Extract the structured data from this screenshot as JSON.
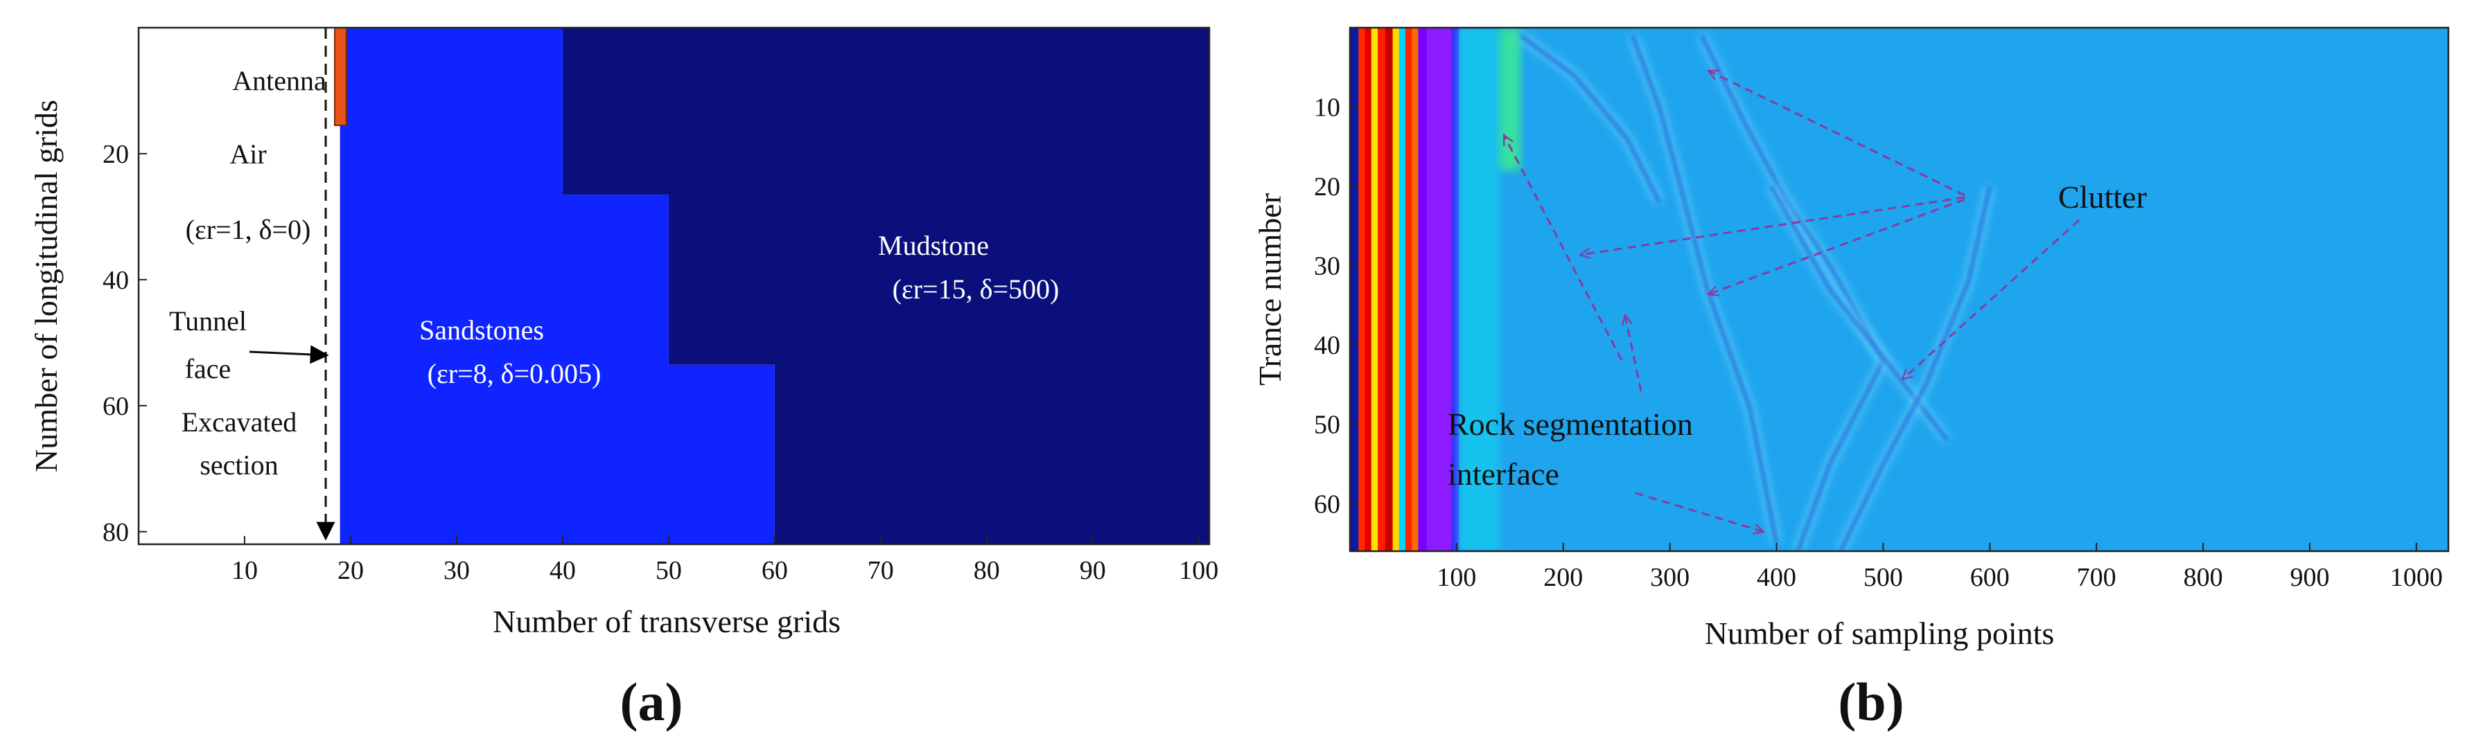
{
  "chart_data": [
    {
      "panel": "(a)",
      "type": "heatmap",
      "xlabel": "Number of transverse grids",
      "ylabel": "Number of longitudinal grids",
      "xlim": [
        0,
        101
      ],
      "ylim": [
        82,
        0
      ],
      "xticks": [
        10,
        20,
        30,
        40,
        50,
        60,
        70,
        80,
        90,
        100
      ],
      "yticks": [
        20,
        40,
        60,
        80
      ],
      "regions": [
        {
          "name": "Air",
          "color": "#ffffff",
          "polygon": [
            [
              0,
              0
            ],
            [
              19,
              0
            ],
            [
              19,
              82
            ],
            [
              0,
              82
            ]
          ]
        },
        {
          "name": "Sandstones",
          "color": "#0f24ff",
          "polygon": [
            [
              19,
              0
            ],
            [
              40,
              0
            ],
            [
              40,
              26.5
            ],
            [
              50,
              26.5
            ],
            [
              50,
              53.5
            ],
            [
              60,
              53.5
            ],
            [
              60,
              82
            ],
            [
              19,
              82
            ]
          ]
        },
        {
          "name": "Mudstone",
          "color": "#0a0f7c",
          "polygon": [
            [
              40,
              0
            ],
            [
              101,
              0
            ],
            [
              101,
              82
            ],
            [
              60,
              82
            ],
            [
              60,
              53.5
            ],
            [
              50,
              53.5
            ],
            [
              50,
              26.5
            ],
            [
              40,
              26.5
            ]
          ]
        },
        {
          "name": "Antenna",
          "color": "#e8531c",
          "polygon": [
            [
              18.5,
              0
            ],
            [
              19.6,
              0
            ],
            [
              19.6,
              15.5
            ],
            [
              18.5,
              15.5
            ]
          ]
        }
      ],
      "annotations": {
        "antenna": "Antenna",
        "air": "Air",
        "air_params": "(εr=1, δ=0)",
        "tunnel_1": "Tunnel",
        "tunnel_2": "face",
        "excavated_1": "Excavated",
        "excavated_2": "section",
        "sandstones": "Sandstones",
        "sandstones_params": "(εr=8, δ=0.005)",
        "mudstone": "Mudstone",
        "mudstone_params": "(εr=15, δ=500)"
      },
      "colors": {
        "air": "#ffffff",
        "sandstones": "#0f24ff",
        "mudstone": "#0a0f7c",
        "antenna": "#e8531c"
      }
    },
    {
      "panel": "(b)",
      "type": "heatmap",
      "xlabel": "Number of sampling points",
      "ylabel": "Trance number",
      "xlim": [
        0,
        1030
      ],
      "ylim": [
        66,
        0
      ],
      "xticks": [
        100,
        200,
        300,
        400,
        500,
        600,
        700,
        800,
        900,
        1000
      ],
      "yticks": [
        10,
        20,
        30,
        40,
        50,
        60
      ],
      "background_color": "#1fa4ee",
      "direct_wave_bands": [
        {
          "x": [
            0,
            8
          ],
          "color": "#0b1aa8"
        },
        {
          "x": [
            8,
            14
          ],
          "color": "#ff2a00"
        },
        {
          "x": [
            14,
            20
          ],
          "color": "#e40000"
        },
        {
          "x": [
            20,
            26
          ],
          "color": "#ffe600"
        },
        {
          "x": [
            26,
            33
          ],
          "color": "#ff1e00"
        },
        {
          "x": [
            33,
            40
          ],
          "color": "#c80000"
        },
        {
          "x": [
            40,
            46
          ],
          "color": "#ffd400"
        },
        {
          "x": [
            46,
            52
          ],
          "color": "#00d6ff"
        },
        {
          "x": [
            52,
            58
          ],
          "color": "#ff2400"
        },
        {
          "x": [
            58,
            64
          ],
          "color": "#ff6a00"
        },
        {
          "x": [
            64,
            72
          ],
          "color": "#7a00ff"
        },
        {
          "x": [
            72,
            95
          ],
          "color": "#8c1cff"
        },
        {
          "x": [
            95,
            102
          ],
          "color": "#3a2aff"
        }
      ],
      "reflection_curves": [
        {
          "points": [
            [
              160,
              1
            ],
            [
              210,
              6
            ],
            [
              260,
              14
            ],
            [
              290,
              22
            ]
          ]
        },
        {
          "points": [
            [
              265,
              1
            ],
            [
              290,
              10
            ],
            [
              310,
              20
            ],
            [
              335,
              33
            ],
            [
              375,
              48
            ],
            [
              400,
              65
            ]
          ]
        },
        {
          "points": [
            [
              330,
              1
            ],
            [
              370,
              12
            ],
            [
              410,
              22
            ],
            [
              450,
              30
            ],
            [
              500,
              42
            ],
            [
              450,
              55
            ],
            [
              420,
              66
            ]
          ]
        },
        {
          "points": [
            [
              395,
              20
            ],
            [
              450,
              33
            ],
            [
              520,
              45
            ],
            [
              560,
              52
            ]
          ]
        },
        {
          "points": [
            [
              460,
              66
            ],
            [
              500,
              55
            ],
            [
              540,
              45
            ],
            [
              580,
              32
            ],
            [
              600,
              20
            ]
          ]
        }
      ],
      "annotations": {
        "clutter": "Clutter",
        "rock_1": "Rock segmentation",
        "rock_2": "interface"
      },
      "arrow_color": "#8a3ba0",
      "colors": {
        "label": "#222222",
        "arrow": "#8a3ba0"
      }
    }
  ],
  "captions": {
    "a": "(a)",
    "b": "(b)"
  }
}
